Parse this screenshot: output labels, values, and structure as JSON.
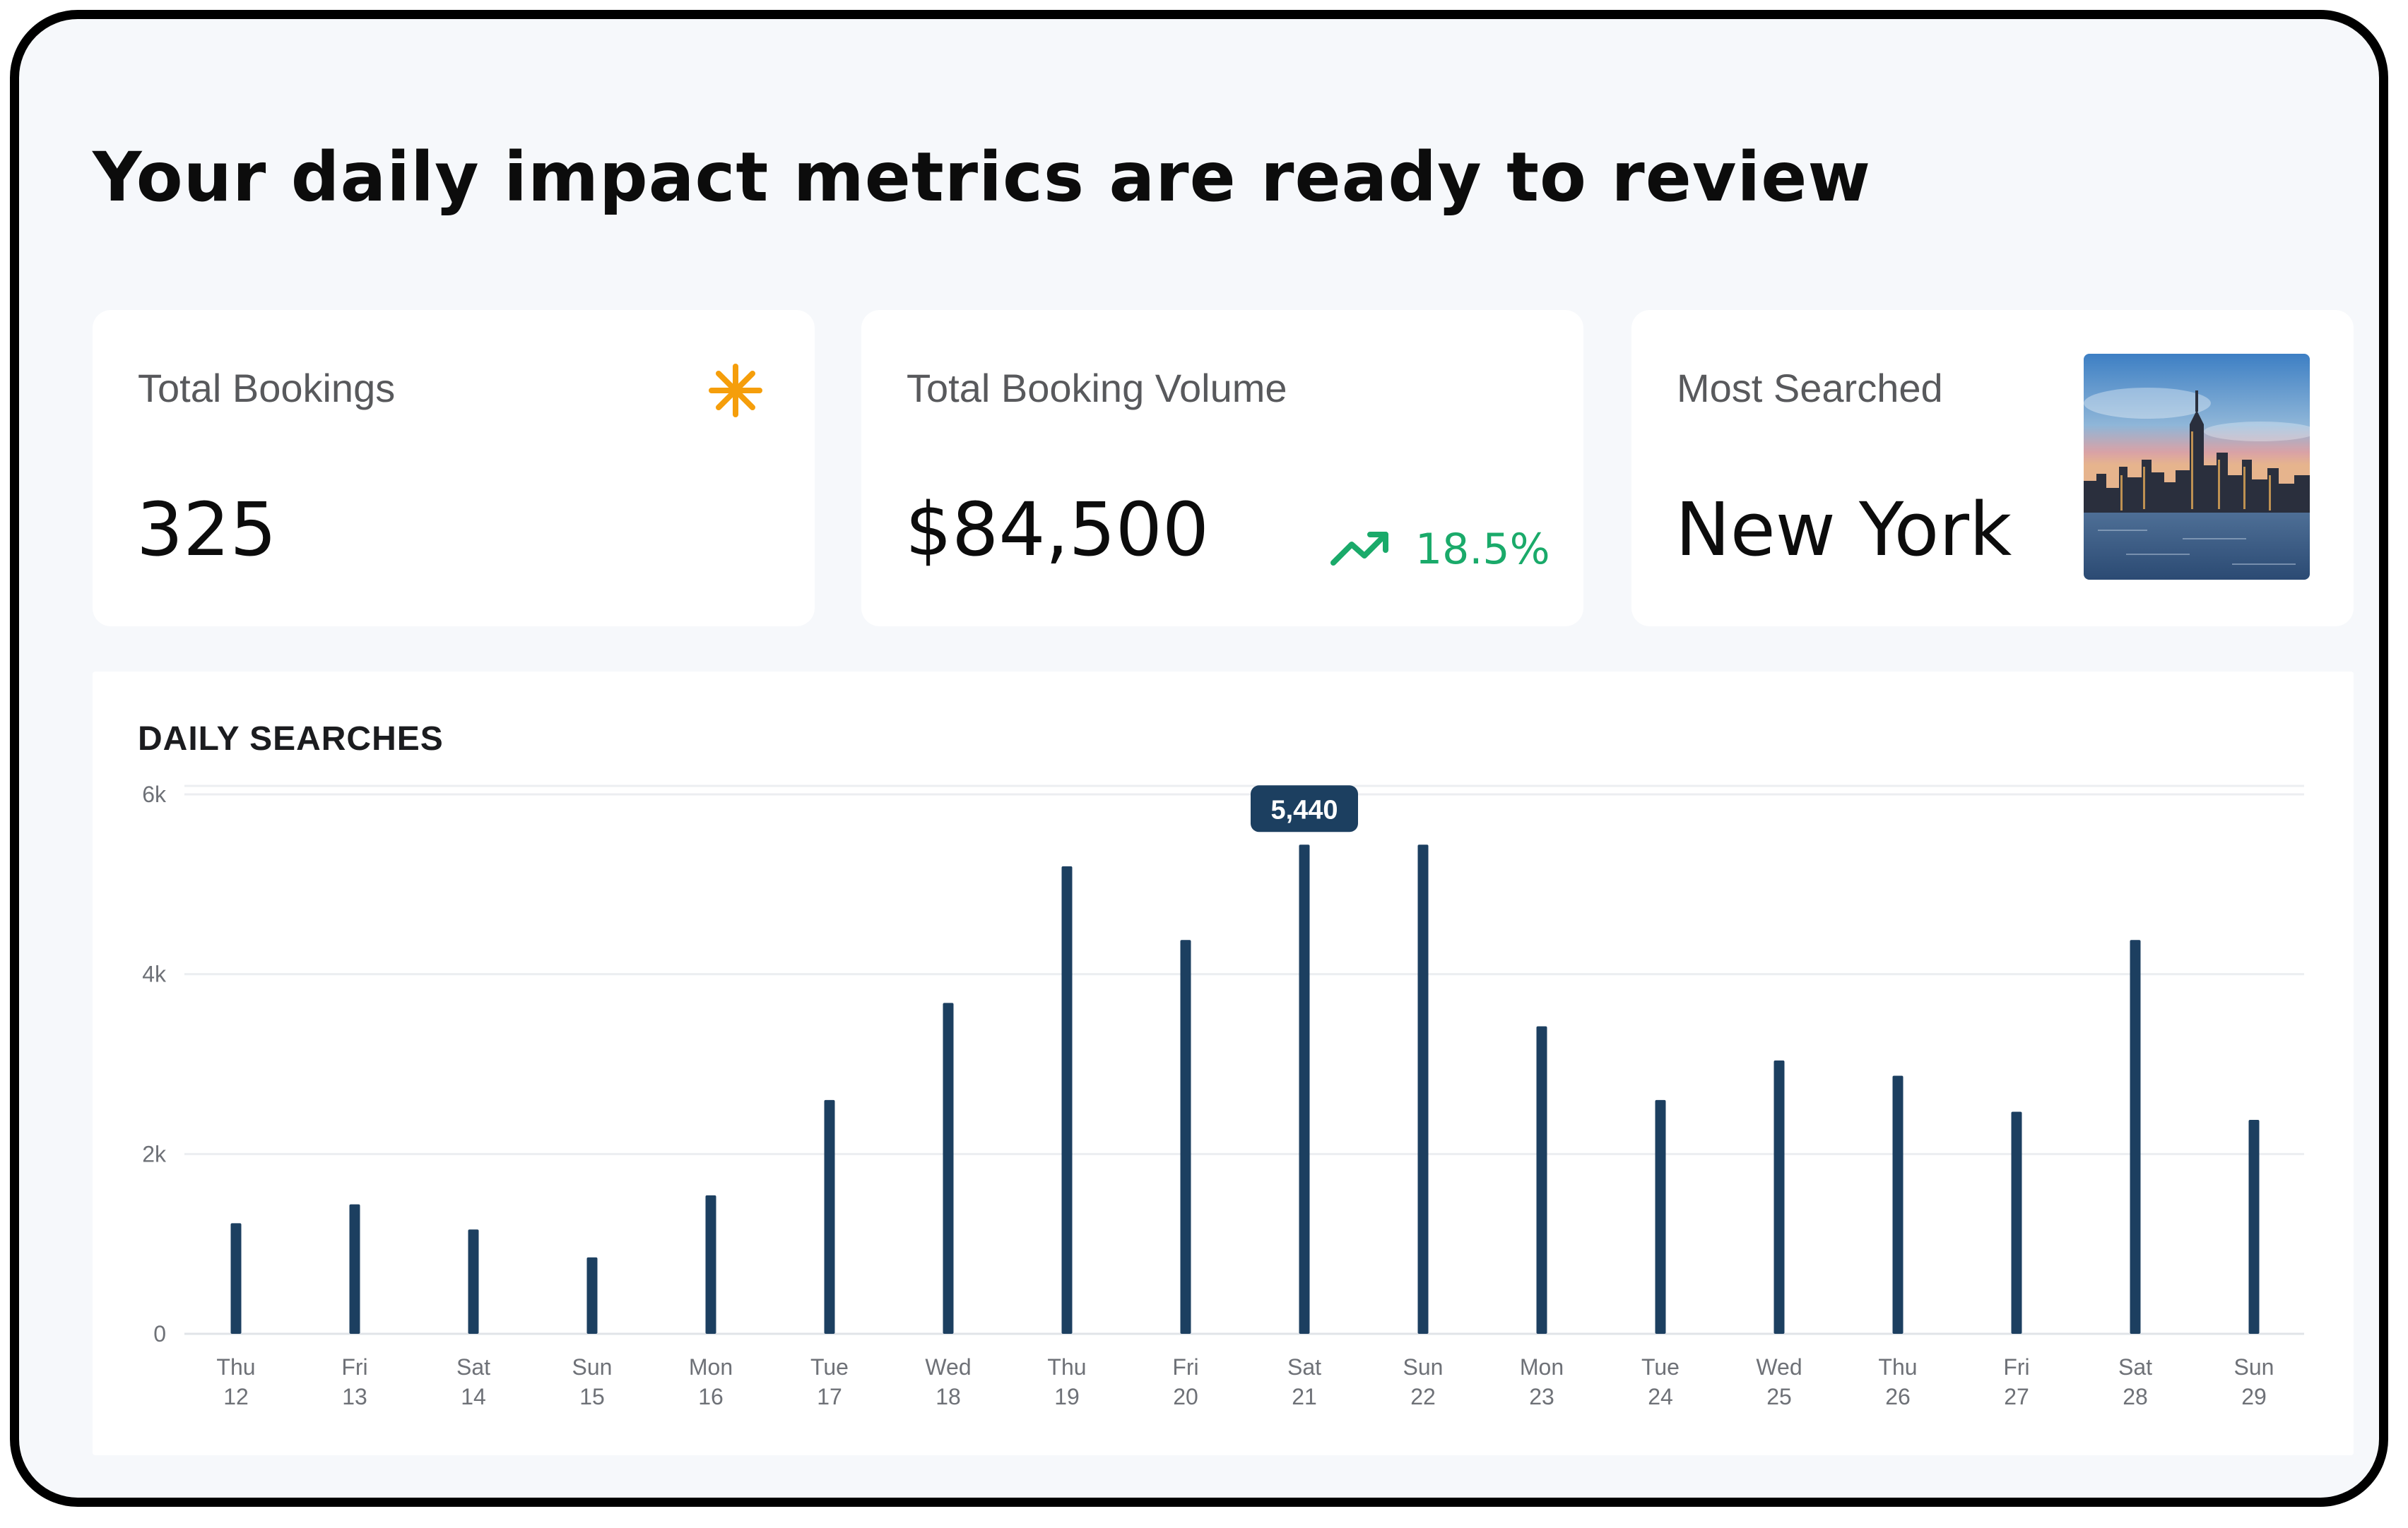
{
  "headline": "Your daily impact metrics are ready to review",
  "kpis": {
    "total_bookings": {
      "label": "Total Bookings",
      "value": "325",
      "icon": "asterisk-icon",
      "icon_color": "#f59e0b"
    },
    "total_booking_volume": {
      "label": "Total Booking Volume",
      "value": "$84,500",
      "trend_value": "18.5%",
      "trend_icon": "trending-up-icon",
      "trend_color": "#1aaa6a"
    },
    "most_searched": {
      "label": "Most Searched",
      "value": "New York",
      "image": "new-york-skyline-photo"
    }
  },
  "chart": {
    "title": "DAILY SEARCHES",
    "bar_color": "#1c3f60",
    "tooltip": {
      "label": "5,440",
      "category_index": 9
    }
  },
  "chart_data": {
    "type": "bar",
    "categories": [
      [
        "Thu",
        "12"
      ],
      [
        "Fri",
        "13"
      ],
      [
        "Sat",
        "14"
      ],
      [
        "Sun",
        "15"
      ],
      [
        "Mon",
        "16"
      ],
      [
        "Tue",
        "17"
      ],
      [
        "Wed",
        "18"
      ],
      [
        "Thu",
        "19"
      ],
      [
        "Fri",
        "20"
      ],
      [
        "Sat",
        "21"
      ],
      [
        "Sun",
        "22"
      ],
      [
        "Mon",
        "23"
      ],
      [
        "Tue",
        "24"
      ],
      [
        "Wed",
        "25"
      ],
      [
        "Thu",
        "26"
      ],
      [
        "Fri",
        "27"
      ],
      [
        "Sat",
        "28"
      ],
      [
        "Sun",
        "29"
      ]
    ],
    "values": [
      1230,
      1440,
      1160,
      850,
      1540,
      2600,
      3680,
      5200,
      4380,
      5440,
      5440,
      3420,
      2600,
      3040,
      2870,
      2470,
      4380,
      2380
    ],
    "title": "DAILY SEARCHES",
    "xlabel": "",
    "ylabel": "",
    "y_ticks": [
      {
        "value": 0,
        "label": "0"
      },
      {
        "value": 2000,
        "label": "2k"
      },
      {
        "value": 4000,
        "label": "4k"
      },
      {
        "value": 6000,
        "label": "6k"
      }
    ],
    "ylim": [
      0,
      6000
    ],
    "grid": true,
    "legend": "none"
  }
}
